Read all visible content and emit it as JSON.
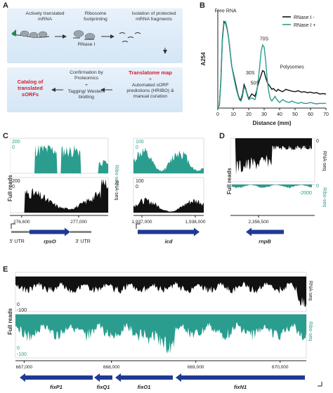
{
  "panel_labels": {
    "a": "A",
    "b": "B",
    "c": "C",
    "d": "D",
    "e": "E"
  },
  "panelA": {
    "step1": "Actively translated mRNA",
    "step2": "Ribosome footprinting",
    "step3": "Isolation of protected mRNA fragments",
    "rnase": "RNase I",
    "catalog": "Catalog of translated sORFs",
    "confirmation": "Confirmation by Proteomics",
    "plus": "+",
    "tagging": "Tagging/ Western blotting",
    "translatome": "Translatome map",
    "translatome_plus": "+",
    "predictions": "Automated sORF predictions (HRIBO) & manual curation"
  },
  "chart_data": [
    {
      "type": "line",
      "panel": "B",
      "xlabel": "Distance (mm)",
      "ylabel": "A254",
      "xticks": [
        0,
        10,
        20,
        30,
        40,
        50,
        60,
        70
      ],
      "xlim": [
        0,
        70
      ],
      "ylim": [
        0,
        2.1
      ],
      "legend": "top-right",
      "series": [
        {
          "name": "RNase I -",
          "color": "#111111",
          "x": [
            0,
            1,
            2,
            3,
            4,
            5,
            6,
            7,
            8,
            9,
            10,
            11,
            12,
            13,
            14,
            15,
            16,
            17,
            18,
            19,
            20,
            21,
            22,
            23,
            24,
            25,
            26,
            27,
            28,
            29,
            30,
            31,
            32,
            33,
            34,
            35,
            36,
            37,
            38,
            39,
            40,
            42,
            44,
            46,
            48,
            50,
            52,
            54,
            56,
            58,
            60,
            62,
            64,
            66,
            68,
            70
          ],
          "y": [
            0.02,
            0.05,
            0.6,
            1.5,
            1.85,
            1.82,
            1.7,
            1.5,
            1.2,
            0.9,
            0.75,
            0.6,
            0.45,
            0.3,
            0.2,
            0.18,
            0.3,
            0.5,
            0.42,
            0.3,
            0.2,
            0.25,
            0.3,
            0.28,
            0.25,
            0.35,
            0.5,
            0.6,
            0.7,
            0.8,
            0.78,
            0.65,
            0.55,
            0.5,
            0.45,
            0.4,
            0.42,
            0.38,
            0.36,
            0.4,
            0.38,
            0.35,
            0.4,
            0.38,
            0.36,
            0.35,
            0.37,
            0.34,
            0.35,
            0.33,
            0.34,
            0.32,
            0.33,
            0.3,
            0.31,
            0.3
          ]
        },
        {
          "name": "RNase I +",
          "color": "#2a9d8f",
          "x": [
            0,
            1,
            2,
            3,
            4,
            5,
            6,
            7,
            8,
            9,
            10,
            11,
            12,
            13,
            14,
            15,
            16,
            17,
            18,
            19,
            20,
            21,
            22,
            23,
            24,
            25,
            26,
            27,
            28,
            29,
            30,
            31,
            32,
            33,
            34,
            35,
            36,
            37,
            38,
            39,
            40,
            42,
            44,
            46,
            48,
            50,
            52,
            54,
            56,
            58,
            60,
            62,
            64,
            66,
            68,
            70
          ],
          "y": [
            0.02,
            0.05,
            0.55,
            1.45,
            1.8,
            1.85,
            1.72,
            1.5,
            1.2,
            0.9,
            0.72,
            0.55,
            0.4,
            0.28,
            0.18,
            0.15,
            0.25,
            0.45,
            0.4,
            0.28,
            0.18,
            0.2,
            0.22,
            0.2,
            0.18,
            0.3,
            0.55,
            0.85,
            1.2,
            1.35,
            1.3,
            1.0,
            0.6,
            0.35,
            0.2,
            0.15,
            0.2,
            0.25,
            0.2,
            0.15,
            0.12,
            0.18,
            0.14,
            0.12,
            0.15,
            0.12,
            0.1,
            0.12,
            0.1,
            0.1,
            0.12,
            0.1,
            0.09,
            0.1,
            0.1,
            0.1
          ]
        }
      ],
      "annotations": [
        "Free RNA",
        "30S",
        "50S",
        "70S",
        "Polysomes"
      ]
    }
  ],
  "panelC": {
    "full_reads": "Full reads",
    "left": {
      "ribo_max": "200",
      "ribo_min": "0",
      "rna_max": "200",
      "rna_min": "0",
      "ticks": [
        "276,600",
        "277,000"
      ],
      "gene": "rpsO",
      "utr5": "5' UTR",
      "utr3": "3' UTR"
    },
    "right": {
      "ribo_max": "100",
      "ribo_min": "0",
      "rna_max": "100",
      "rna_min": "0",
      "ticks": [
        "1,937,000",
        "1,938,000"
      ],
      "gene": "icd"
    },
    "ribo_label": "Ribo-seq",
    "rna_label": "RNA-seq"
  },
  "panelD": {
    "full_reads": "Full reads",
    "rna_0": "0",
    "rna_min": "-2000",
    "ribo_0": "0",
    "ribo_min": "-2000",
    "tick": "2,356,500",
    "gene": "rnpB",
    "rna_label": "RNA-seq",
    "ribo_label": "Ribo-seq"
  },
  "panelE": {
    "full_reads": "Full reads",
    "rna_0": "0",
    "rna_min": "-100",
    "ribo_0": "0",
    "ribo_min": "-100",
    "ticks": [
      "667,000",
      "668,000",
      "669,000",
      "670,000"
    ],
    "genes": [
      "fixP1",
      "fixQ1",
      "fixO1",
      "fixN1"
    ],
    "rna_label": "RNA-seq",
    "ribo_label": "Ribo-seq"
  },
  "colors": {
    "teal": "#2a9d8f",
    "black": "#111111",
    "gene_blue": "#1f3a93",
    "red": "#d3202f"
  }
}
